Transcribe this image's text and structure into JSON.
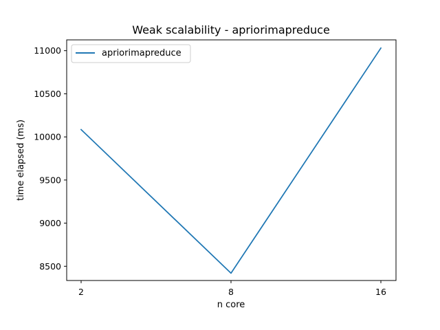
{
  "chart_data": {
    "type": "line",
    "title": "Weak scalability - apriorimapreduce",
    "xlabel": "n core",
    "ylabel": "time elapsed (ms)",
    "categories": [
      "2",
      "8",
      "16"
    ],
    "series": [
      {
        "name": "apriorimapreduce",
        "color": "#1f77b4",
        "values": [
          10085,
          8420,
          11030
        ]
      }
    ],
    "ylim": [
      8335,
      11125
    ],
    "yticks": [
      8500,
      9000,
      9500,
      10000,
      10500,
      11000
    ],
    "grid": false,
    "legend_position": "top-left"
  }
}
